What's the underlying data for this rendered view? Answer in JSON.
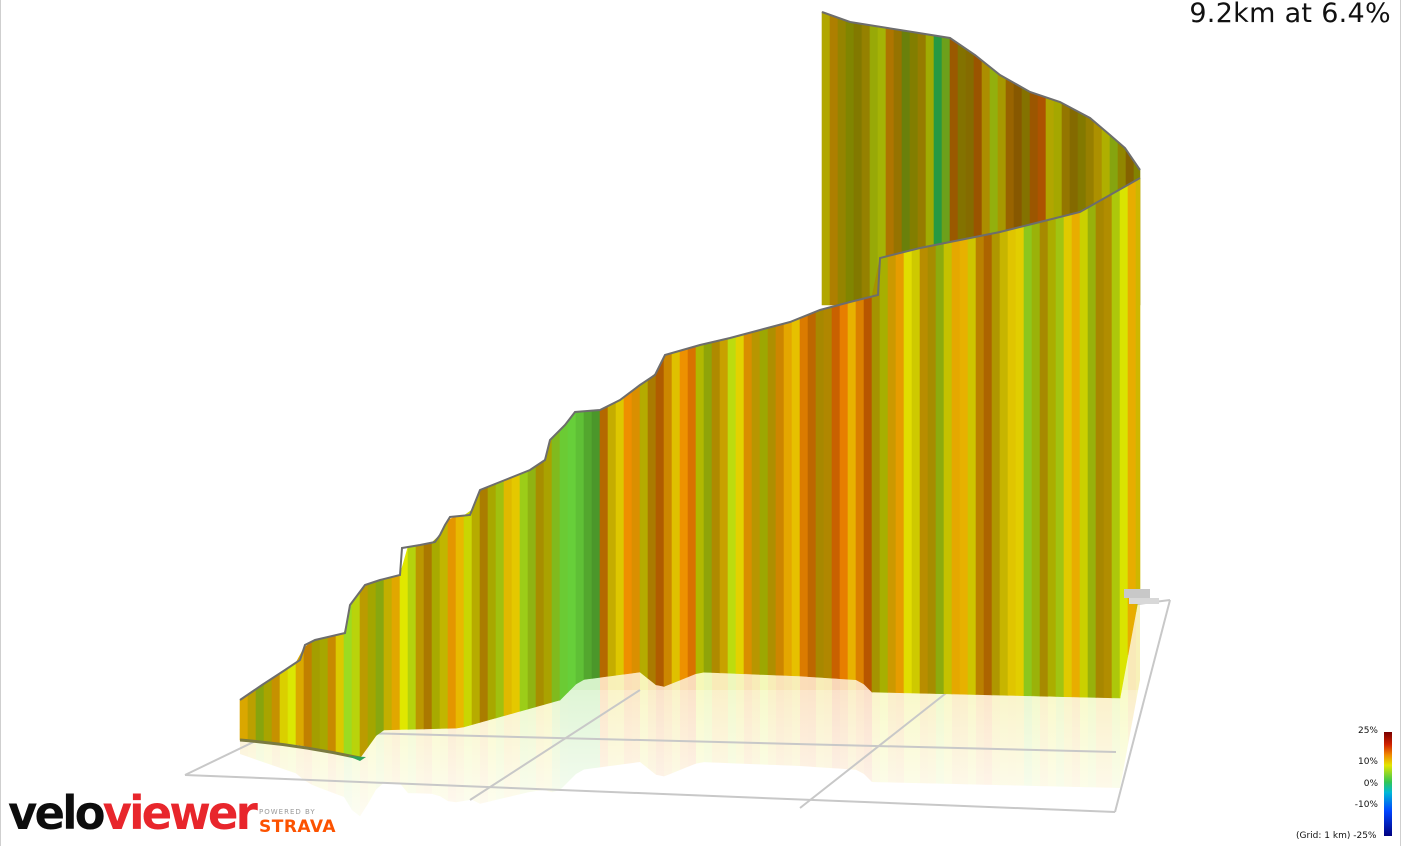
{
  "header": {
    "stats": "9.2km at 6.4%"
  },
  "brand": {
    "name_part1": "velo",
    "name_part2": "viewer",
    "powered_by": "POWERED BY",
    "partner": "STRAVA"
  },
  "legend": {
    "ticks": [
      "25%",
      "10%",
      "0%",
      "-10%"
    ],
    "bottom_label": "(Grid: 1 km) -25%"
  },
  "colors": {
    "accent_red": "#e8262c",
    "strava_orange": "#fc5200"
  },
  "chart_data": {
    "type": "area",
    "title": "9.2km at 6.4%",
    "subtitle": "",
    "xlabel": "",
    "ylabel": "",
    "distance_km": 9.2,
    "average_gradient_pct": 6.4,
    "grid_spacing_km": 1,
    "color_scale": {
      "min_pct": -25,
      "max_pct": 25,
      "ticks_pct": [
        25,
        10,
        0,
        -10,
        -25
      ]
    },
    "x_km": [
      0,
      0.5,
      1,
      1.5,
      2,
      2.5,
      3,
      3.5,
      4,
      4.5,
      5,
      5.5,
      6,
      6.5,
      7,
      7.5,
      8,
      8.5,
      9,
      9.2
    ],
    "gradient_pct": [
      6,
      7,
      5,
      6,
      7,
      6,
      5,
      2,
      8,
      9,
      6,
      7,
      9,
      10,
      7,
      6,
      8,
      5,
      6,
      6
    ],
    "legend": "top-right",
    "grid": true
  }
}
